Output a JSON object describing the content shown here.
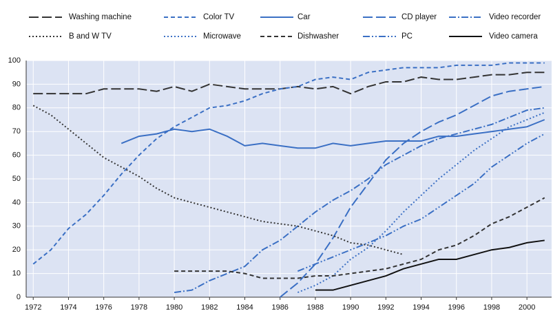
{
  "chart_data": {
    "type": "line",
    "x": [
      1972,
      1973,
      1974,
      1975,
      1976,
      1977,
      1978,
      1979,
      1980,
      1981,
      1982,
      1983,
      1984,
      1985,
      1986,
      1987,
      1988,
      1989,
      1990,
      1991,
      1992,
      1993,
      1994,
      1995,
      1996,
      1997,
      1998,
      1999,
      2000,
      2001
    ],
    "xlim": [
      1971.6,
      2001.4
    ],
    "xticks": [
      1972,
      1974,
      1976,
      1978,
      1980,
      1982,
      1984,
      1986,
      1988,
      1990,
      1992,
      1994,
      1996,
      1998,
      2000
    ],
    "ylim": [
      0,
      100
    ],
    "yticks": [
      0,
      10,
      20,
      30,
      40,
      50,
      60,
      70,
      80,
      90,
      100
    ],
    "grid": true,
    "series": [
      {
        "name": "Washing machine",
        "color": "#333333",
        "dash": "long",
        "values": [
          86,
          86,
          86,
          86,
          88,
          88,
          88,
          87,
          89,
          87,
          90,
          89,
          88,
          88,
          88,
          89,
          88,
          89,
          86,
          89,
          91,
          91,
          93,
          92,
          92,
          93,
          94,
          94,
          95,
          95
        ]
      },
      {
        "name": "Color TV",
        "color": "#3a6fc4",
        "dash": "short",
        "values": [
          14,
          20,
          29,
          35,
          43,
          52,
          60,
          67,
          72,
          76,
          80,
          81,
          83,
          86,
          88,
          89,
          92,
          93,
          92,
          95,
          96,
          97,
          97,
          97,
          98,
          98,
          98,
          99,
          99,
          99
        ]
      },
      {
        "name": "Car",
        "color": "#3a6fc4",
        "dash": "solid",
        "values": [
          null,
          null,
          null,
          null,
          null,
          65,
          68,
          69,
          71,
          70,
          71,
          68,
          64,
          65,
          64,
          63,
          63,
          65,
          64,
          65,
          66,
          66,
          66,
          68,
          68,
          69,
          70,
          71,
          72,
          75
        ]
      },
      {
        "name": "CD player",
        "color": "#3a6fc4",
        "dash": "long",
        "values": [
          null,
          null,
          null,
          null,
          null,
          null,
          null,
          null,
          null,
          null,
          null,
          null,
          null,
          null,
          0,
          6,
          14,
          25,
          38,
          48,
          58,
          65,
          70,
          74,
          77,
          81,
          85,
          87,
          88,
          89
        ]
      },
      {
        "name": "Video recorder",
        "color": "#3a6fc4",
        "dash": "dashdot",
        "values": [
          null,
          null,
          null,
          null,
          null,
          null,
          null,
          null,
          2,
          3,
          7,
          10,
          13,
          20,
          24,
          30,
          36,
          41,
          45,
          50,
          56,
          60,
          64,
          67,
          69,
          71,
          73,
          76,
          79,
          80
        ]
      },
      {
        "name": "B and W TV",
        "color": "#333333",
        "dash": "dot",
        "values": [
          81,
          77,
          71,
          65,
          59,
          55,
          51,
          46,
          42,
          40,
          38,
          36,
          34,
          32,
          31,
          30,
          28,
          26,
          23,
          22,
          20,
          18,
          null,
          null,
          null,
          null,
          null,
          null,
          null,
          null
        ]
      },
      {
        "name": "Microwave",
        "color": "#3a6fc4",
        "dash": "dot",
        "values": [
          null,
          null,
          null,
          null,
          null,
          null,
          null,
          null,
          null,
          null,
          null,
          null,
          null,
          null,
          null,
          2,
          5,
          9,
          16,
          21,
          28,
          36,
          43,
          50,
          56,
          62,
          67,
          72,
          75,
          78
        ]
      },
      {
        "name": "Dishwasher",
        "color": "#333333",
        "dash": "short",
        "values": [
          null,
          null,
          null,
          null,
          null,
          null,
          null,
          null,
          11,
          11,
          11,
          11,
          10,
          8,
          8,
          8,
          9,
          9,
          10,
          11,
          12,
          14,
          16,
          20,
          22,
          26,
          31,
          34,
          38,
          42
        ]
      },
      {
        "name": "PC",
        "color": "#3a6fc4",
        "dash": "dashdotdot",
        "values": [
          null,
          null,
          null,
          null,
          null,
          null,
          null,
          null,
          null,
          null,
          null,
          null,
          null,
          null,
          null,
          11,
          14,
          17,
          20,
          23,
          26,
          30,
          33,
          38,
          43,
          48,
          55,
          60,
          65,
          69
        ]
      },
      {
        "name": "Video camera",
        "color": "#111111",
        "dash": "solid",
        "values": [
          null,
          null,
          null,
          null,
          null,
          null,
          null,
          null,
          null,
          null,
          null,
          null,
          null,
          null,
          null,
          null,
          3,
          3,
          5,
          7,
          9,
          12,
          14,
          16,
          16,
          18,
          20,
          21,
          23,
          24
        ]
      }
    ]
  }
}
